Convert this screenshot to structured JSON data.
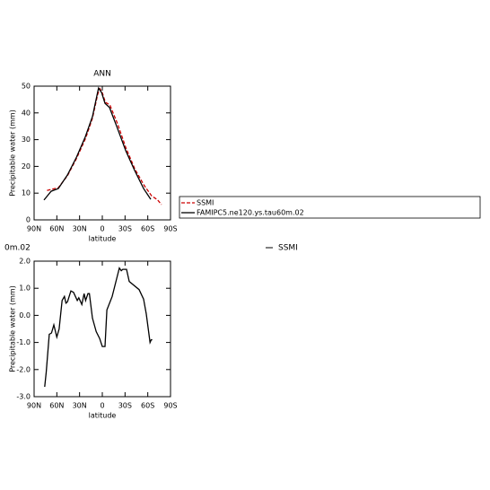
{
  "chart_data": [
    {
      "type": "line",
      "title": "ANN",
      "x_label": "latitude",
      "y_label": "Precipitable water (mm)",
      "xlim": [
        90,
        -90
      ],
      "xticks": [
        {
          "value": 90,
          "label": "90N"
        },
        {
          "value": 60,
          "label": "60N"
        },
        {
          "value": 30,
          "label": "30N"
        },
        0,
        {
          "value": -30,
          "label": "30S"
        },
        {
          "value": -60,
          "label": "60S"
        },
        {
          "value": -90,
          "label": "90S"
        }
      ],
      "ylim": [
        0,
        50
      ],
      "yticks": [
        0,
        10,
        20,
        30,
        40,
        50
      ],
      "series": [
        {
          "name": "SSMI",
          "color": "#cc0000",
          "dashed": true,
          "x": [
            73,
            66,
            58,
            46,
            34,
            22,
            13,
            6,
            3,
            0,
            -4,
            -10,
            -20,
            -31,
            -43,
            -55,
            -65,
            -73,
            -78
          ],
          "values": [
            11,
            11.5,
            12,
            16.5,
            23,
            30.5,
            38,
            47,
            49,
            47.5,
            44,
            43,
            36,
            27,
            19,
            13,
            9,
            7.5,
            5.7
          ]
        },
        {
          "name": "FAMIPC5.ne120.ys.tau60m.02",
          "color": "#000000",
          "dashed": false,
          "x": [
            77,
            67.5,
            58,
            46,
            34,
            22.5,
            13,
            5,
            1,
            -3.5,
            -9.5,
            -19,
            -31,
            -42.6,
            -54.5,
            -64
          ],
          "values": [
            7.4,
            10.7,
            11.7,
            16.8,
            23.5,
            31,
            38.6,
            49.3,
            47.6,
            43.6,
            42,
            35,
            25.8,
            18.5,
            11.7,
            7.7
          ]
        }
      ]
    },
    {
      "type": "line",
      "x_label": "latitude",
      "y_label": "Precipitable water (mm)",
      "annotations": [
        "0m.02",
        "SSMI"
      ],
      "xlim": [
        90,
        -90
      ],
      "xticks": [
        {
          "value": 90,
          "label": "90N"
        },
        {
          "value": 60,
          "label": "60N"
        },
        {
          "value": 30,
          "label": "30N"
        },
        0,
        {
          "value": -30,
          "label": "30S"
        },
        {
          "value": -60,
          "label": "60S"
        },
        {
          "value": -90,
          "label": "90S"
        }
      ],
      "ylim": [
        -3,
        2
      ],
      "yticks": [
        {
          "value": 2,
          "label": "2.0"
        },
        {
          "value": 1,
          "label": "1.0"
        },
        {
          "value": 0,
          "label": "0.0"
        },
        {
          "value": -1,
          "label": "-1.0"
        },
        {
          "value": -2,
          "label": "-2.0"
        },
        {
          "value": -3,
          "label": "-3.0"
        }
      ],
      "series": [
        {
          "color": "#000000",
          "dashed": false,
          "x": [
            76,
            74,
            70,
            67,
            64,
            60,
            57,
            53,
            50,
            48,
            46,
            41.5,
            38,
            33,
            31,
            27,
            24,
            22,
            19,
            17,
            13,
            8,
            3.5,
            0,
            -3.5,
            -6,
            -13,
            -18,
            -22.5,
            -25,
            -27,
            -32,
            -35.5,
            -48.5,
            -54.5,
            -58,
            -63,
            -64.5,
            -66
          ],
          "values": [
            -2.64,
            -2.1,
            -0.7,
            -0.65,
            -0.35,
            -0.8,
            -0.5,
            0.55,
            0.7,
            0.45,
            0.5,
            0.9,
            0.85,
            0.55,
            0.65,
            0.4,
            0.8,
            0.55,
            0.8,
            0.8,
            -0.1,
            -0.6,
            -0.85,
            -1.15,
            -1.15,
            0.2,
            0.7,
            1.25,
            1.75,
            1.65,
            1.7,
            1.7,
            1.25,
            0.95,
            0.6,
            0.05,
            -1.0,
            -0.9,
            -0.9
          ]
        }
      ]
    }
  ]
}
